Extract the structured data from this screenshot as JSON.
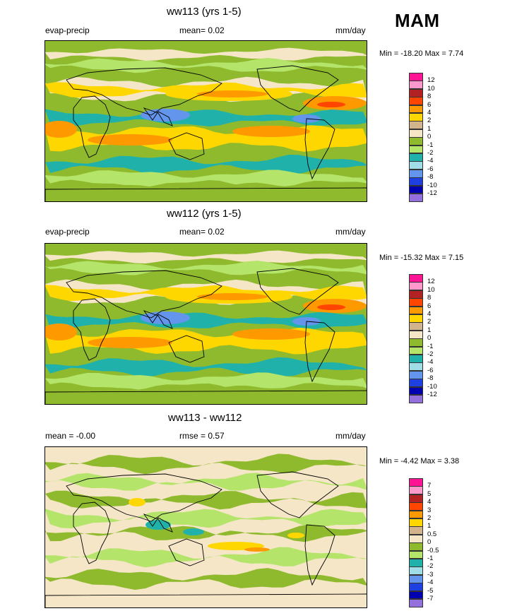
{
  "season": "MAM",
  "panels": [
    {
      "title": "ww113 (yrs 1-5)",
      "left_label": "evap-precip",
      "center_label": "mean=   0.02",
      "units": "mm/day",
      "minmax": "Min = -18.20 Max =   7.74",
      "type": "field"
    },
    {
      "title": "ww112 (yrs 1-5)",
      "left_label": "evap-precip",
      "center_label": "mean=   0.02",
      "units": "mm/day",
      "minmax": "Min = -15.32 Max =   7.15",
      "type": "field"
    },
    {
      "title": "ww113 - ww112",
      "left_label": "mean =  -0.00",
      "center_label": "rmse =   0.57",
      "units": "mm/day",
      "minmax": "Min =  -4.42 Max =   3.38",
      "type": "diff"
    }
  ],
  "colorbars": {
    "field": {
      "labels": [
        "12",
        "10",
        "8",
        "6",
        "4",
        "2",
        "1",
        "0",
        "-1",
        "-2",
        "-4",
        "-6",
        "-8",
        "-10",
        "-12"
      ],
      "colors": [
        "#ff1493",
        "#ff99cc",
        "#b22222",
        "#ff4500",
        "#ff9900",
        "#ffd700",
        "#d2b48c",
        "#f5e6c8",
        "#8fba2e",
        "#b4e46a",
        "#20b2aa",
        "#a0dde6",
        "#6495ed",
        "#1e40e0",
        "#0000b0",
        "#9370db"
      ]
    },
    "diff": {
      "labels": [
        "7",
        "5",
        "4",
        "3",
        "2",
        "1",
        "0.5",
        "0",
        "-0.5",
        "-1",
        "-2",
        "-3",
        "-4",
        "-5",
        "-7"
      ],
      "colors": [
        "#ff1493",
        "#ff99cc",
        "#b22222",
        "#ff4500",
        "#ff9900",
        "#ffd700",
        "#d2b48c",
        "#f5e6c8",
        "#8fba2e",
        "#b4e46a",
        "#20b2aa",
        "#a0dde6",
        "#6495ed",
        "#1e40e0",
        "#0000b0",
        "#9370db"
      ]
    }
  }
}
